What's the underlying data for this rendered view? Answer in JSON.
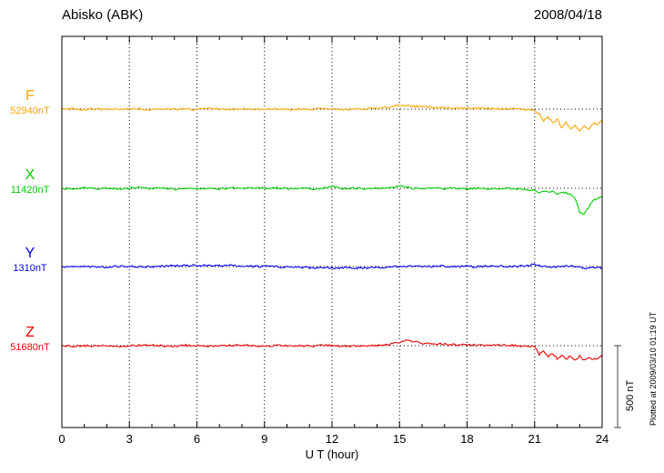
{
  "header": {
    "station": "Abisko (ABK)",
    "date": "2008/04/18"
  },
  "axis": {
    "xlabel": "U T (hour)",
    "xmin": 0,
    "xmax": 24,
    "major_ticks": [
      0,
      3,
      6,
      9,
      12,
      15,
      18,
      21,
      24
    ],
    "minor_tick_every": 1
  },
  "scale_bar": {
    "label": "500 nT",
    "nT": 500
  },
  "footer_note": "Plotted at 2009/03/10 01:19 UT",
  "colors": {
    "background": "#FFFFFF",
    "frame": "#000000",
    "grid": "#000000"
  },
  "chart_data": {
    "type": "line",
    "title": "Abisko (ABK) magnetogram 2008/04/18",
    "xlabel": "U T (hour)",
    "x_range": [
      0,
      24
    ],
    "grid": "dotted vertical every 3 h, dotted horizontal baseline per trace",
    "scale_nT_per_division": 500,
    "noise_nT": 6,
    "series": [
      {
        "name": "F",
        "baseline_label": "52940nT",
        "baseline_nT": 52940,
        "color": "#FFA500",
        "points": [
          [
            0,
            0
          ],
          [
            0.5,
            2
          ],
          [
            1,
            -2
          ],
          [
            1.5,
            1
          ],
          [
            2,
            -2
          ],
          [
            2.5,
            2
          ],
          [
            3,
            0
          ],
          [
            3.5,
            2
          ],
          [
            4,
            -3
          ],
          [
            4.5,
            2
          ],
          [
            5,
            -2
          ],
          [
            5.5,
            1
          ],
          [
            6,
            -2
          ],
          [
            6.5,
            2
          ],
          [
            7,
            0
          ],
          [
            7.5,
            -2
          ],
          [
            8,
            1
          ],
          [
            8.5,
            -2
          ],
          [
            9,
            0
          ],
          [
            9.5,
            2
          ],
          [
            10,
            -2
          ],
          [
            10.5,
            1
          ],
          [
            11,
            -2
          ],
          [
            11.5,
            1
          ],
          [
            12,
            2
          ],
          [
            12.5,
            -1
          ],
          [
            13,
            1
          ],
          [
            13.5,
            2
          ],
          [
            14,
            4
          ],
          [
            14.5,
            12
          ],
          [
            15,
            24
          ],
          [
            15.5,
            20
          ],
          [
            16,
            14
          ],
          [
            16.5,
            10
          ],
          [
            17,
            8
          ],
          [
            17.5,
            6
          ],
          [
            18,
            5
          ],
          [
            18.5,
            4
          ],
          [
            19,
            3
          ],
          [
            19.5,
            3
          ],
          [
            20,
            2
          ],
          [
            20.5,
            0
          ],
          [
            21,
            -6
          ],
          [
            21.2,
            -30
          ],
          [
            21.4,
            -70
          ],
          [
            21.6,
            -45
          ],
          [
            21.8,
            -85
          ],
          [
            22,
            -60
          ],
          [
            22.2,
            -110
          ],
          [
            22.4,
            -80
          ],
          [
            22.6,
            -125
          ],
          [
            22.8,
            -95
          ],
          [
            23,
            -135
          ],
          [
            23.2,
            -100
          ],
          [
            23.4,
            -125
          ],
          [
            23.6,
            -85
          ],
          [
            23.8,
            -95
          ],
          [
            24,
            -65
          ]
        ]
      },
      {
        "name": "X",
        "baseline_label": "11420nT",
        "baseline_nT": 11420,
        "color": "#00CC00",
        "points": [
          [
            0,
            0
          ],
          [
            0.5,
            -3
          ],
          [
            1,
            2
          ],
          [
            1.5,
            -2
          ],
          [
            2,
            3
          ],
          [
            2.5,
            -4
          ],
          [
            3,
            1
          ],
          [
            3.5,
            4
          ],
          [
            4,
            -3
          ],
          [
            4.5,
            2
          ],
          [
            5,
            -5
          ],
          [
            5.5,
            3
          ],
          [
            6,
            -2
          ],
          [
            6.5,
            3
          ],
          [
            7,
            -3
          ],
          [
            7.5,
            3
          ],
          [
            8,
            -4
          ],
          [
            8.5,
            2
          ],
          [
            9,
            -2
          ],
          [
            9.5,
            3
          ],
          [
            10,
            -3
          ],
          [
            10.5,
            2
          ],
          [
            11,
            -4
          ],
          [
            11.5,
            0
          ],
          [
            12,
            14
          ],
          [
            12.2,
            6
          ],
          [
            12.5,
            -3
          ],
          [
            13,
            1
          ],
          [
            13.5,
            -4
          ],
          [
            14,
            2
          ],
          [
            14.5,
            -2
          ],
          [
            15,
            16
          ],
          [
            15.2,
            8
          ],
          [
            15.5,
            1
          ],
          [
            16,
            -3
          ],
          [
            16.5,
            2
          ],
          [
            17,
            -4
          ],
          [
            17.5,
            2
          ],
          [
            18,
            -3
          ],
          [
            18.5,
            2
          ],
          [
            19,
            -3
          ],
          [
            19.5,
            2
          ],
          [
            20,
            -2
          ],
          [
            20.5,
            -6
          ],
          [
            21,
            -12
          ],
          [
            21.2,
            -28
          ],
          [
            21.4,
            -16
          ],
          [
            21.6,
            -24
          ],
          [
            21.8,
            -18
          ],
          [
            22,
            -32
          ],
          [
            22.2,
            -22
          ],
          [
            22.4,
            -28
          ],
          [
            22.6,
            -38
          ],
          [
            22.8,
            -60
          ],
          [
            23,
            -145
          ],
          [
            23.2,
            -155
          ],
          [
            23.4,
            -115
          ],
          [
            23.6,
            -75
          ],
          [
            23.8,
            -60
          ],
          [
            24,
            -55
          ]
        ]
      },
      {
        "name": "Y",
        "baseline_label": "1310nT",
        "baseline_nT": 1310,
        "color": "#0000EE",
        "points": [
          [
            0,
            0
          ],
          [
            0.5,
            2
          ],
          [
            1,
            3
          ],
          [
            1.5,
            -2
          ],
          [
            2,
            -3
          ],
          [
            2.5,
            2
          ],
          [
            3,
            1
          ],
          [
            3.5,
            -2
          ],
          [
            4,
            -2
          ],
          [
            4.5,
            3
          ],
          [
            5,
            5
          ],
          [
            5.5,
            8
          ],
          [
            6,
            6
          ],
          [
            6.5,
            8
          ],
          [
            7,
            5
          ],
          [
            7.5,
            6
          ],
          [
            8,
            3
          ],
          [
            8.5,
            1
          ],
          [
            9,
            0
          ],
          [
            9.5,
            -1
          ],
          [
            10,
            -3
          ],
          [
            10.5,
            -5
          ],
          [
            11,
            -8
          ],
          [
            11.5,
            -7
          ],
          [
            12,
            -10
          ],
          [
            12.5,
            -8
          ],
          [
            13,
            -10
          ],
          [
            13.5,
            -8
          ],
          [
            14,
            -5
          ],
          [
            14.5,
            -3
          ],
          [
            15,
            0
          ],
          [
            15.5,
            2
          ],
          [
            16,
            0
          ],
          [
            16.5,
            1
          ],
          [
            17,
            2
          ],
          [
            17.5,
            0
          ],
          [
            18,
            1
          ],
          [
            18.5,
            0
          ],
          [
            19,
            2
          ],
          [
            19.5,
            1
          ],
          [
            20,
            0
          ],
          [
            20.5,
            3
          ],
          [
            21,
            14
          ],
          [
            21.2,
            6
          ],
          [
            21.5,
            0
          ],
          [
            22,
            -3
          ],
          [
            22.5,
            2
          ],
          [
            23,
            -6
          ],
          [
            23.3,
            -12
          ],
          [
            23.6,
            -5
          ],
          [
            24,
            -9
          ]
        ]
      },
      {
        "name": "Z",
        "baseline_label": "51680nT",
        "baseline_nT": 51680,
        "color": "#EE0000",
        "points": [
          [
            0,
            0
          ],
          [
            0.5,
            -2
          ],
          [
            1,
            -2
          ],
          [
            1.5,
            2
          ],
          [
            2,
            2
          ],
          [
            2.5,
            -3
          ],
          [
            3,
            -1
          ],
          [
            3.5,
            2
          ],
          [
            4,
            3
          ],
          [
            4.5,
            -2
          ],
          [
            5,
            -3
          ],
          [
            5.5,
            2
          ],
          [
            6,
            0
          ],
          [
            6.5,
            -2
          ],
          [
            7,
            -3
          ],
          [
            7.5,
            1
          ],
          [
            8,
            2
          ],
          [
            8.5,
            -2
          ],
          [
            9,
            -2
          ],
          [
            9.5,
            1
          ],
          [
            10,
            0
          ],
          [
            10.5,
            -2
          ],
          [
            11,
            -3
          ],
          [
            11.5,
            1
          ],
          [
            12,
            2
          ],
          [
            12.5,
            -2
          ],
          [
            13,
            -2
          ],
          [
            13.5,
            1
          ],
          [
            14,
            0
          ],
          [
            14.5,
            6
          ],
          [
            15,
            22
          ],
          [
            15.3,
            30
          ],
          [
            15.6,
            24
          ],
          [
            16,
            16
          ],
          [
            16.5,
            11
          ],
          [
            17,
            8
          ],
          [
            17.5,
            6
          ],
          [
            18,
            5
          ],
          [
            18.5,
            4
          ],
          [
            19,
            3
          ],
          [
            19.5,
            2
          ],
          [
            20,
            2
          ],
          [
            20.5,
            0
          ],
          [
            21,
            -6
          ],
          [
            21.2,
            -55
          ],
          [
            21.4,
            -35
          ],
          [
            21.6,
            -70
          ],
          [
            21.8,
            -50
          ],
          [
            22,
            -78
          ],
          [
            22.2,
            -58
          ],
          [
            22.4,
            -85
          ],
          [
            22.6,
            -62
          ],
          [
            22.8,
            -90
          ],
          [
            23,
            -65
          ],
          [
            23.2,
            -92
          ],
          [
            23.4,
            -70
          ],
          [
            23.6,
            -82
          ],
          [
            23.8,
            -75
          ],
          [
            24,
            -55
          ]
        ]
      }
    ]
  }
}
